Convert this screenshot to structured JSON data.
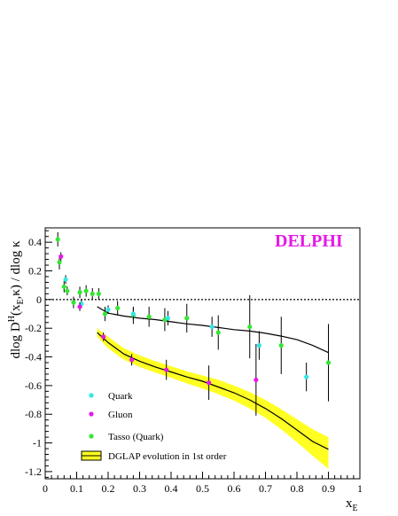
{
  "chart_data": {
    "type": "scatter",
    "title": "",
    "annotation": "DELPHI",
    "xlabel_main": "x",
    "xlabel_sub": "E",
    "ylabel": "dlog D^H(x_E,κ) / dlog κ",
    "ylabel_parts": {
      "pre": "dlog D",
      "sup": "H",
      "mid1": "(x",
      "sub": "E",
      "mid2": ",κ) / dlog κ"
    },
    "xlim": [
      0,
      1
    ],
    "ylim": [
      -1.25,
      0.5
    ],
    "xticks": [
      "0",
      "0.1",
      "0.2",
      "0.3",
      "0.4",
      "0.5",
      "0.6",
      "0.7",
      "0.8",
      "0.9",
      "1"
    ],
    "xtick_values": [
      0,
      0.1,
      0.2,
      0.3,
      0.4,
      0.5,
      0.6,
      0.7,
      0.8,
      0.9,
      1.0
    ],
    "yticks": [
      "0.4",
      "0.2",
      "0",
      "-0.2",
      "-0.4",
      "-0.6",
      "-0.8",
      "-1",
      "-1.2"
    ],
    "ytick_values": [
      0.4,
      0.2,
      0,
      -0.2,
      -0.4,
      -0.6,
      -0.8,
      -1.0,
      -1.2
    ],
    "zero_line": true,
    "colors": {
      "quark": "#33e6e6",
      "gluon": "#e619e6",
      "tasso": "#33e633",
      "band": "#ffff22",
      "brand": "#e619e6"
    },
    "series": [
      {
        "name": "Quark",
        "points": [
          {
            "x": 0.065,
            "y": 0.14,
            "err": 0.03
          },
          {
            "x": 0.115,
            "y": -0.03,
            "err": 0.03
          },
          {
            "x": 0.2,
            "y": -0.07,
            "err": 0.03
          },
          {
            "x": 0.28,
            "y": -0.1,
            "err": 0.04
          },
          {
            "x": 0.39,
            "y": -0.13,
            "err": 0.05
          },
          {
            "x": 0.53,
            "y": -0.19,
            "err": 0.07
          },
          {
            "x": 0.68,
            "y": -0.32,
            "err": 0.1
          },
          {
            "x": 0.83,
            "y": -0.54,
            "err": 0.1
          }
        ]
      },
      {
        "name": "Gluon",
        "points": [
          {
            "x": 0.05,
            "y": 0.3,
            "err": 0.03
          },
          {
            "x": 0.11,
            "y": -0.05,
            "err": 0.03
          },
          {
            "x": 0.185,
            "y": -0.26,
            "err": 0.03
          },
          {
            "x": 0.275,
            "y": -0.42,
            "err": 0.04
          },
          {
            "x": 0.385,
            "y": -0.49,
            "err": 0.07
          },
          {
            "x": 0.52,
            "y": -0.58,
            "err": 0.12
          },
          {
            "x": 0.67,
            "y": -0.56,
            "err": 0.25
          }
        ]
      },
      {
        "name": "Tasso (Quark)",
        "points": [
          {
            "x": 0.04,
            "y": 0.42,
            "err": 0.05
          },
          {
            "x": 0.045,
            "y": 0.26,
            "err": 0.05
          },
          {
            "x": 0.06,
            "y": 0.09,
            "err": 0.04
          },
          {
            "x": 0.07,
            "y": 0.06,
            "err": 0.03
          },
          {
            "x": 0.09,
            "y": -0.02,
            "err": 0.04
          },
          {
            "x": 0.11,
            "y": 0.05,
            "err": 0.04
          },
          {
            "x": 0.13,
            "y": 0.06,
            "err": 0.04
          },
          {
            "x": 0.15,
            "y": 0.04,
            "err": 0.04
          },
          {
            "x": 0.17,
            "y": 0.04,
            "err": 0.04
          },
          {
            "x": 0.19,
            "y": -0.1,
            "err": 0.05
          },
          {
            "x": 0.23,
            "y": -0.06,
            "err": 0.05
          },
          {
            "x": 0.28,
            "y": -0.11,
            "err": 0.06
          },
          {
            "x": 0.33,
            "y": -0.12,
            "err": 0.07
          },
          {
            "x": 0.38,
            "y": -0.14,
            "err": 0.08
          },
          {
            "x": 0.45,
            "y": -0.13,
            "err": 0.1
          },
          {
            "x": 0.55,
            "y": -0.23,
            "err": 0.12
          },
          {
            "x": 0.65,
            "y": -0.19,
            "err": 0.22
          },
          {
            "x": 0.75,
            "y": -0.32,
            "err": 0.2
          },
          {
            "x": 0.9,
            "y": -0.44,
            "err": 0.27
          }
        ]
      }
    ],
    "curves": [
      {
        "name": "quark-fit",
        "x": [
          0.165,
          0.2,
          0.25,
          0.3,
          0.35,
          0.4,
          0.45,
          0.5,
          0.55,
          0.6,
          0.65,
          0.7,
          0.75,
          0.8,
          0.85,
          0.9
        ],
        "y": [
          -0.05,
          -0.095,
          -0.115,
          -0.13,
          -0.14,
          -0.155,
          -0.17,
          -0.18,
          -0.195,
          -0.21,
          -0.22,
          -0.235,
          -0.255,
          -0.28,
          -0.32,
          -0.37
        ]
      },
      {
        "name": "gluon-fit",
        "x": [
          0.165,
          0.2,
          0.25,
          0.3,
          0.35,
          0.4,
          0.45,
          0.5,
          0.55,
          0.6,
          0.65,
          0.7,
          0.75,
          0.8,
          0.85,
          0.9
        ],
        "y": [
          -0.23,
          -0.3,
          -0.38,
          -0.43,
          -0.47,
          -0.505,
          -0.54,
          -0.57,
          -0.61,
          -0.65,
          -0.7,
          -0.76,
          -0.83,
          -0.91,
          -0.99,
          -1.045
        ]
      }
    ],
    "band": {
      "name": "DGLAP evolution in 1st order",
      "x": [
        0.165,
        0.2,
        0.25,
        0.3,
        0.35,
        0.4,
        0.45,
        0.5,
        0.55,
        0.6,
        0.65,
        0.7,
        0.75,
        0.8,
        0.85,
        0.9
      ],
      "upper": [
        -0.2,
        -0.26,
        -0.34,
        -0.39,
        -0.43,
        -0.465,
        -0.5,
        -0.53,
        -0.56,
        -0.6,
        -0.645,
        -0.7,
        -0.765,
        -0.835,
        -0.905,
        -0.96
      ],
      "lower": [
        -0.26,
        -0.34,
        -0.42,
        -0.47,
        -0.51,
        -0.545,
        -0.585,
        -0.62,
        -0.66,
        -0.705,
        -0.76,
        -0.825,
        -0.905,
        -0.995,
        -1.09,
        -1.18
      ]
    },
    "legend": [
      {
        "label": "Quark",
        "kind": "marker",
        "color": "#33e6e6"
      },
      {
        "label": "Gluon",
        "kind": "marker",
        "color": "#e619e6"
      },
      {
        "label": "Tasso (Quark)",
        "kind": "marker",
        "color": "#33e633"
      },
      {
        "label": "DGLAP evolution in 1st order",
        "kind": "band",
        "color": "#ffff22"
      }
    ]
  }
}
